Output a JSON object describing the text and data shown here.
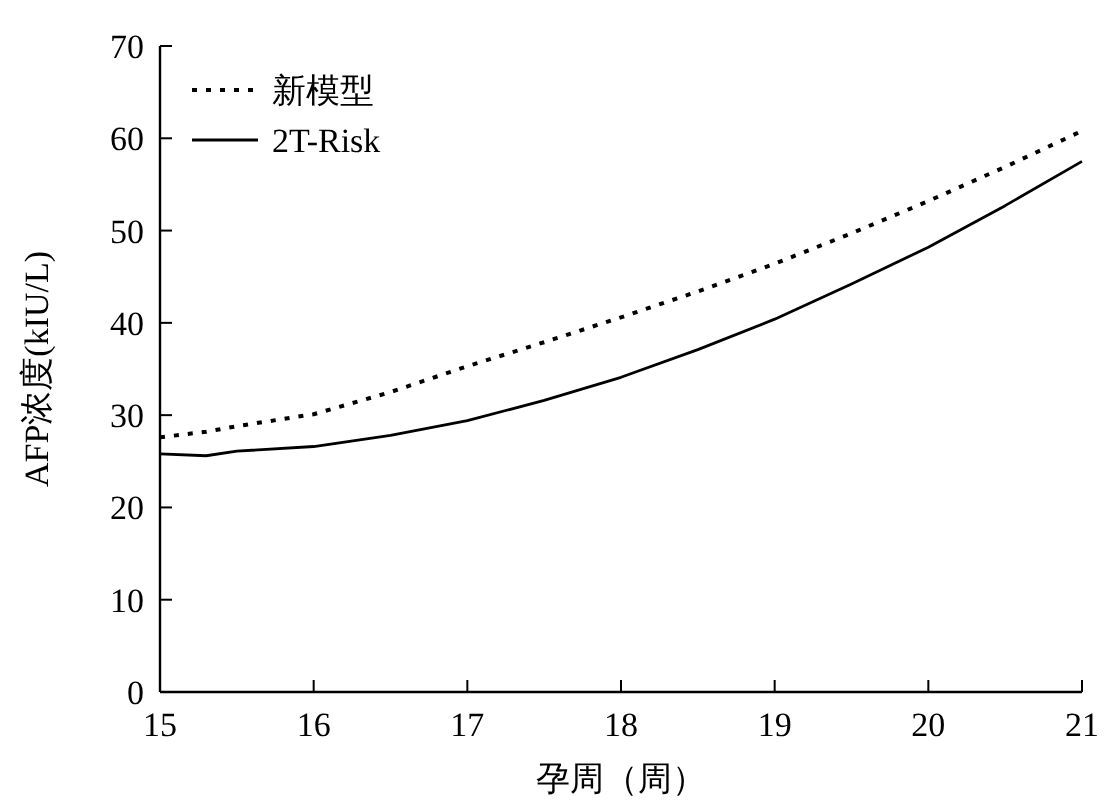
{
  "chart_data": {
    "type": "line",
    "xlabel": "孕周（周）",
    "ylabel": "AFP浓度(kIU/L)",
    "x": [
      15,
      15.3,
      15.5,
      16,
      16.5,
      17,
      17.5,
      18,
      18.5,
      19,
      19.5,
      20,
      20.5,
      21
    ],
    "series": [
      {
        "name": "新模型",
        "color": "#000000",
        "line_style": "dotted",
        "values": [
          27.6,
          28.2,
          28.8,
          30.1,
          32.5,
          35.3,
          37.9,
          40.6,
          43.4,
          46.4,
          49.7,
          53.2,
          56.9,
          60.8
        ]
      },
      {
        "name": "2T-Risk",
        "color": "#000000",
        "line_style": "solid",
        "values": [
          25.8,
          25.6,
          26.1,
          26.6,
          27.8,
          29.4,
          31.6,
          34.1,
          37.1,
          40.4,
          44.2,
          48.2,
          52.7,
          57.5
        ]
      }
    ],
    "xlim": [
      15,
      21
    ],
    "xticks": [
      15,
      16,
      17,
      18,
      19,
      20,
      21
    ],
    "ylim": [
      0,
      70
    ],
    "yticks": [
      0,
      10,
      20,
      30,
      40,
      50,
      60,
      70
    ],
    "grid": false,
    "legend": "top left"
  }
}
